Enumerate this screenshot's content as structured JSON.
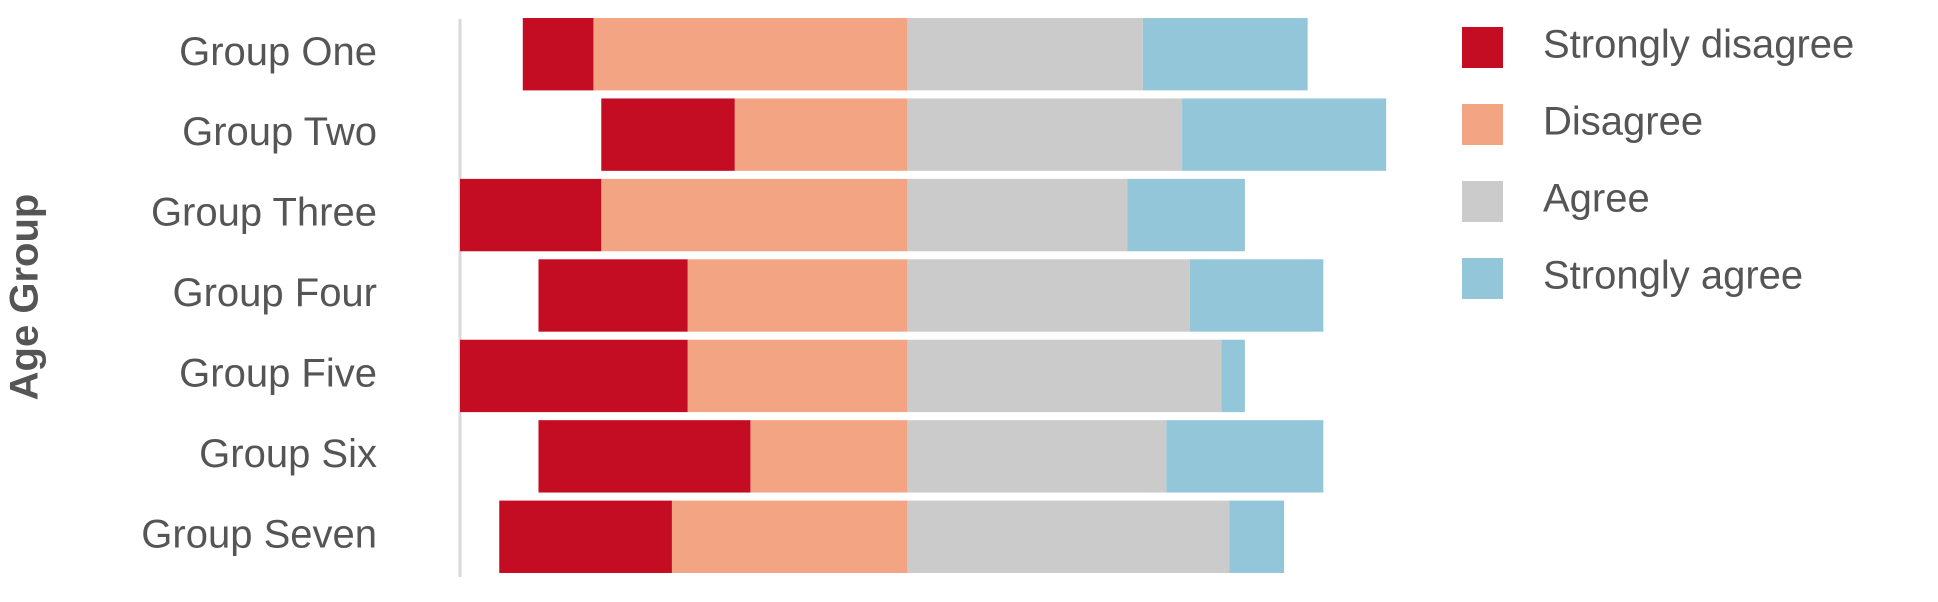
{
  "chart_data": {
    "type": "diverging_bar",
    "y_label": "Age Group",
    "categories": [
      "Group One",
      "Group Two",
      "Group Three",
      "Group Four",
      "Group Five",
      "Group Six",
      "Group Seven"
    ],
    "series": [
      {
        "name": "Strongly disagree",
        "color": "#c40d23",
        "values": [
          9,
          17,
          18,
          19,
          29,
          27,
          22
        ]
      },
      {
        "name": "Disagree",
        "color": "#f3a583",
        "values": [
          40,
          22,
          39,
          28,
          28,
          20,
          30
        ]
      },
      {
        "name": "Agree",
        "color": "#cbcbcb",
        "values": [
          30,
          35,
          28,
          36,
          40,
          33,
          41
        ]
      },
      {
        "name": "Strongly agree",
        "color": "#94c6da",
        "values": [
          21,
          26,
          15,
          17,
          3,
          20,
          7
        ]
      }
    ],
    "xlim": [
      -57,
      62
    ],
    "legend": "right"
  }
}
